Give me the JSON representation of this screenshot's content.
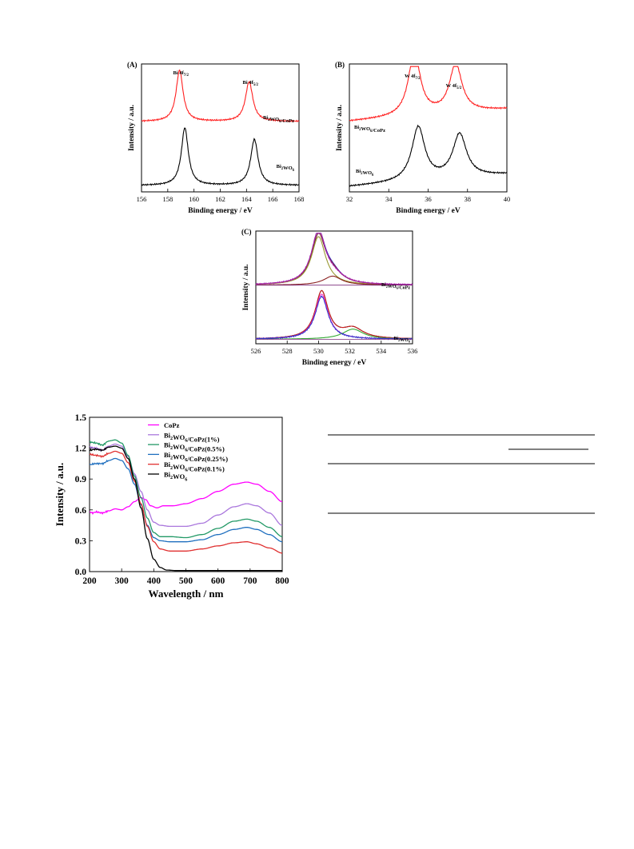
{
  "chart_data": [
    {
      "id": "A",
      "type": "line",
      "panel_label": "(A)",
      "xlabel": "Binding energy / eV",
      "ylabel": "Intensity / a.u.",
      "xlim": [
        156,
        168
      ],
      "xticks": [
        156,
        158,
        160,
        162,
        164,
        166,
        168
      ],
      "annotations": [
        {
          "text": "Bi 4f7/2",
          "main": "Bi 4f",
          "sub": "7/2",
          "x": 159.0
        },
        {
          "text": "Bi 4f5/2",
          "main": "Bi 4f",
          "sub": "5/2",
          "x": 164.3
        }
      ],
      "series": [
        {
          "name": "Bi2WO6/CoPz",
          "main": "Bi",
          "sub1": "2",
          "mid": "WO",
          "sub2": "6",
          "tail": "/CoPz",
          "color": "#ff2020",
          "baseline": 0.55,
          "peaks": [
            {
              "x": 158.9,
              "h": 0.4,
              "w": 0.32
            },
            {
              "x": 164.2,
              "h": 0.31,
              "w": 0.34
            }
          ]
        },
        {
          "name": "Bi2WO6",
          "main": "Bi",
          "sub1": "2",
          "mid": "WO",
          "sub2": "6",
          "tail": "",
          "color": "#000000",
          "baseline": 0.05,
          "peaks": [
            {
              "x": 159.3,
              "h": 0.45,
              "w": 0.32
            },
            {
              "x": 164.6,
              "h": 0.36,
              "w": 0.34
            }
          ]
        }
      ]
    },
    {
      "id": "B",
      "type": "line",
      "panel_label": "(B)",
      "xlabel": "Binding energy / eV",
      "ylabel": "Intensity / a.u.",
      "xlim": [
        32,
        40
      ],
      "xticks": [
        32,
        34,
        36,
        38,
        40
      ],
      "annotations": [
        {
          "text": "W 4f7/2",
          "main": "W 4f",
          "sub": "7/2",
          "x": 35.2
        },
        {
          "text": "W 4f5/2",
          "main": "W 4f",
          "sub": "5/2",
          "x": 37.3
        }
      ],
      "series": [
        {
          "name": "Bi2WO6/CoPz",
          "main": "Bi",
          "sub1": "2",
          "mid": "WO",
          "sub2": "6",
          "tail": "/CoPz",
          "color": "#ff2020",
          "baseline": 0.55,
          "slope": 0.012,
          "peaks": [
            {
              "x": 35.3,
              "h": 0.5,
              "w": 0.36
            },
            {
              "x": 37.4,
              "h": 0.38,
              "w": 0.38
            }
          ]
        },
        {
          "name": "Bi2WO6",
          "main": "Bi",
          "sub1": "2",
          "mid": "WO",
          "sub2": "6",
          "tail": "",
          "color": "#000000",
          "baseline": 0.04,
          "slope": 0.012,
          "peaks": [
            {
              "x": 35.5,
              "h": 0.42,
              "w": 0.4
            },
            {
              "x": 37.6,
              "h": 0.34,
              "w": 0.42
            }
          ]
        }
      ]
    },
    {
      "id": "C",
      "type": "line",
      "panel_label": "(C)",
      "xlabel": "Binding energy / eV",
      "ylabel": "Intensity / a.u.",
      "xlim": [
        526,
        536
      ],
      "xticks": [
        526,
        528,
        530,
        532,
        534,
        536
      ],
      "series": [
        {
          "name": "Bi2WO6/CoPz",
          "main": "Bi",
          "sub1": "2",
          "mid": "WO",
          "sub2": "6",
          "tail": "/CoPz",
          "baseline": 0.52,
          "components": [
            {
              "role": "envelope",
              "color": "#3333cc",
              "peaks": [
                {
                  "x": 530.0,
                  "h": 0.46,
                  "w": 0.55
                },
                {
                  "x": 530.9,
                  "h": 0.08,
                  "w": 0.7
                }
              ]
            },
            {
              "role": "fit",
              "color": "#7a2a2a",
              "peaks": [
                {
                  "x": 530.0,
                  "h": 0.43,
                  "w": 0.55
                },
                {
                  "x": 530.9,
                  "h": 0.08,
                  "w": 0.7
                }
              ]
            },
            {
              "role": "peak1",
              "color": "#999933",
              "peaks": [
                {
                  "x": 530.0,
                  "h": 0.43,
                  "w": 0.55
                }
              ]
            },
            {
              "role": "peak2",
              "color": "#8b2222",
              "peaks": [
                {
                  "x": 530.9,
                  "h": 0.08,
                  "w": 0.7
                }
              ]
            },
            {
              "role": "raw",
              "color": "#aa22aa",
              "peaks": [
                {
                  "x": 530.0,
                  "h": 0.47,
                  "w": 0.55
                },
                {
                  "x": 531.0,
                  "h": 0.06,
                  "w": 0.8
                }
              ]
            }
          ]
        },
        {
          "name": "Bi2WO6",
          "main": "Bi",
          "sub1": "2",
          "mid": "WO",
          "sub2": "6",
          "tail": "",
          "baseline": 0.04,
          "components": [
            {
              "role": "envelope",
              "color": "#000000",
              "peaks": [
                {
                  "x": 530.2,
                  "h": 0.42,
                  "w": 0.5
                },
                {
                  "x": 532.2,
                  "h": 0.09,
                  "w": 0.8
                }
              ]
            },
            {
              "role": "fit",
              "color": "#cc2222",
              "peaks": [
                {
                  "x": 530.2,
                  "h": 0.42,
                  "w": 0.5
                },
                {
                  "x": 532.2,
                  "h": 0.09,
                  "w": 0.8
                }
              ]
            },
            {
              "role": "peak1",
              "color": "#ff33cc",
              "peaks": [
                {
                  "x": 530.2,
                  "h": 0.4,
                  "w": 0.5
                }
              ]
            },
            {
              "role": "peak2",
              "color": "#33aa33",
              "peaks": [
                {
                  "x": 532.2,
                  "h": 0.09,
                  "w": 0.8
                }
              ]
            },
            {
              "role": "raw",
              "color": "#3333cc",
              "peaks": [
                {
                  "x": 530.2,
                  "h": 0.38,
                  "w": 0.5
                }
              ]
            }
          ]
        }
      ]
    },
    {
      "id": "D",
      "type": "line",
      "xlabel": "Wavelength / nm",
      "ylabel": "Intensity / a.u.",
      "xlim": [
        200,
        800
      ],
      "ylim": [
        0,
        1.5
      ],
      "xticks": [
        200,
        300,
        400,
        500,
        600,
        700,
        800
      ],
      "yticks": [
        "0.0",
        "0.3",
        "0.6",
        "0.9",
        "1.2",
        "1.5"
      ],
      "series": [
        {
          "name": "CoPz",
          "main": "CoPz",
          "sub1": "",
          "mid": "",
          "sub2": "",
          "tail": "",
          "color": "#ff00ff",
          "x": [
            200,
            210,
            220,
            240,
            260,
            280,
            300,
            320,
            340,
            360,
            375,
            390,
            410,
            430,
            460,
            500,
            550,
            600,
            650,
            690,
            720,
            760,
            800
          ],
          "y": [
            0.58,
            0.57,
            0.58,
            0.57,
            0.59,
            0.61,
            0.6,
            0.63,
            0.68,
            0.72,
            0.7,
            0.64,
            0.62,
            0.64,
            0.64,
            0.66,
            0.71,
            0.78,
            0.85,
            0.87,
            0.85,
            0.78,
            0.68
          ]
        },
        {
          "name": "Bi2WO6/CoPz(1%)",
          "main": "Bi",
          "sub1": "2",
          "mid": "WO",
          "sub2": "6",
          "tail": "/CoPz(1%)",
          "color": "#aa77dd",
          "x": [
            200,
            220,
            240,
            260,
            280,
            300,
            320,
            340,
            360,
            380,
            400,
            420,
            450,
            500,
            550,
            600,
            650,
            690,
            720,
            760,
            800
          ],
          "y": [
            1.21,
            1.2,
            1.18,
            1.22,
            1.24,
            1.22,
            1.12,
            0.95,
            0.78,
            0.6,
            0.48,
            0.45,
            0.44,
            0.44,
            0.47,
            0.55,
            0.63,
            0.66,
            0.64,
            0.57,
            0.45
          ]
        },
        {
          "name": "Bi2WO6/CoPz(0.5%)",
          "main": "Bi",
          "sub1": "2",
          "mid": "WO",
          "sub2": "6",
          "tail": "/CoPz(0.5%)",
          "color": "#229966",
          "x": [
            200,
            220,
            240,
            260,
            280,
            300,
            320,
            340,
            360,
            380,
            400,
            420,
            450,
            500,
            550,
            600,
            650,
            690,
            720,
            760,
            800
          ],
          "y": [
            1.26,
            1.25,
            1.23,
            1.27,
            1.28,
            1.25,
            1.13,
            0.93,
            0.72,
            0.52,
            0.38,
            0.34,
            0.34,
            0.33,
            0.36,
            0.42,
            0.49,
            0.51,
            0.49,
            0.43,
            0.34
          ]
        },
        {
          "name": "Bi2WO6/CoPz(0.25%)",
          "main": "Bi",
          "sub1": "2",
          "mid": "WO",
          "sub2": "6",
          "tail": "/CoPz(0.25%)",
          "color": "#1f6fbf",
          "x": [
            200,
            220,
            240,
            260,
            280,
            300,
            320,
            340,
            360,
            380,
            400,
            420,
            450,
            500,
            550,
            600,
            650,
            690,
            720,
            760,
            800
          ],
          "y": [
            1.04,
            1.05,
            1.05,
            1.08,
            1.1,
            1.08,
            1.0,
            0.85,
            0.65,
            0.45,
            0.33,
            0.3,
            0.29,
            0.29,
            0.31,
            0.36,
            0.41,
            0.43,
            0.41,
            0.36,
            0.29
          ]
        },
        {
          "name": "Bi2WO6/CoPz(0.1%)",
          "main": "Bi",
          "sub1": "2",
          "mid": "WO",
          "sub2": "6",
          "tail": "/CoPz(0.1%)",
          "color": "#e03030",
          "x": [
            200,
            220,
            240,
            260,
            280,
            300,
            320,
            340,
            360,
            380,
            400,
            420,
            450,
            500,
            550,
            600,
            650,
            690,
            720,
            760,
            800
          ],
          "y": [
            1.14,
            1.13,
            1.12,
            1.15,
            1.17,
            1.15,
            1.06,
            0.88,
            0.66,
            0.44,
            0.29,
            0.22,
            0.2,
            0.2,
            0.22,
            0.25,
            0.28,
            0.29,
            0.27,
            0.23,
            0.18
          ]
        },
        {
          "name": "Bi2WO6",
          "main": "Bi",
          "sub1": "2",
          "mid": "WO",
          "sub2": "6",
          "tail": "",
          "color": "#000000",
          "x": [
            200,
            220,
            240,
            260,
            280,
            300,
            320,
            340,
            360,
            380,
            400,
            420,
            440,
            470,
            500,
            600,
            700,
            800
          ],
          "y": [
            1.18,
            1.19,
            1.18,
            1.21,
            1.22,
            1.2,
            1.1,
            0.9,
            0.62,
            0.32,
            0.12,
            0.04,
            0.015,
            0.01,
            0.01,
            0.01,
            0.01,
            0.01
          ]
        }
      ]
    }
  ]
}
